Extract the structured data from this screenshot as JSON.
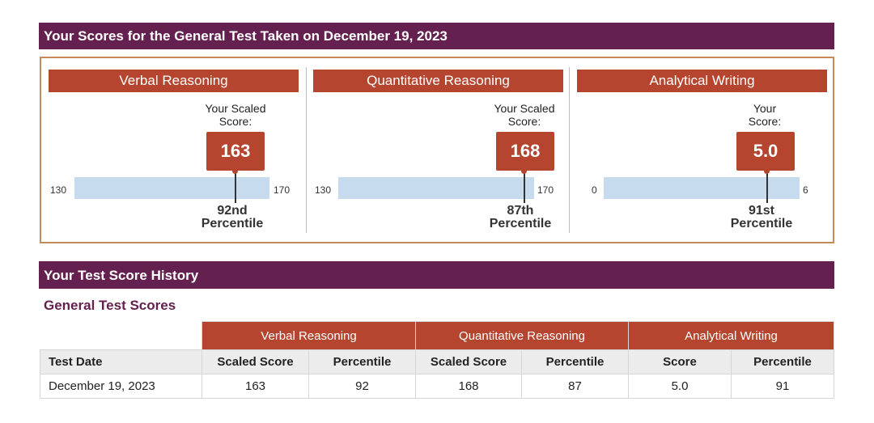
{
  "banner_title": "Your Scores for the General Test Taken on December 19, 2023",
  "sections": [
    {
      "header": "Verbal Reasoning",
      "caption": [
        "Your Scaled",
        "Score:"
      ],
      "score": "163",
      "min": "130",
      "max": "170",
      "score_value": 163,
      "min_value": 130,
      "max_value": 170,
      "percentile": "92nd",
      "percentile_word": "Percentile"
    },
    {
      "header": "Quantitative Reasoning",
      "caption": [
        "Your Scaled",
        "Score:"
      ],
      "score": "168",
      "min": "130",
      "max": "170",
      "score_value": 168,
      "min_value": 130,
      "max_value": 170,
      "percentile": "87th",
      "percentile_word": "Percentile"
    },
    {
      "header": "Analytical Writing",
      "caption": [
        "Your",
        "Score:"
      ],
      "score": "5.0",
      "min": "0",
      "max": "6",
      "score_value": 5.0,
      "min_value": 0,
      "max_value": 6,
      "percentile": "91st",
      "percentile_word": "Percentile"
    }
  ],
  "history_title": "Your Test Score History",
  "table_title": "General Test Scores",
  "table": {
    "groups": [
      "Verbal Reasoning",
      "Quantitative Reasoning",
      "Analytical Writing"
    ],
    "headers": [
      "Test Date",
      "Scaled Score",
      "Percentile",
      "Scaled Score",
      "Percentile",
      "Score",
      "Percentile"
    ],
    "rows": [
      [
        "December 19, 2023",
        "163",
        "92",
        "168",
        "87",
        "5.0",
        "91"
      ]
    ]
  },
  "colors": {
    "banner": "#64214f",
    "accent": "#b5452f",
    "bar": "#c6dbee"
  }
}
